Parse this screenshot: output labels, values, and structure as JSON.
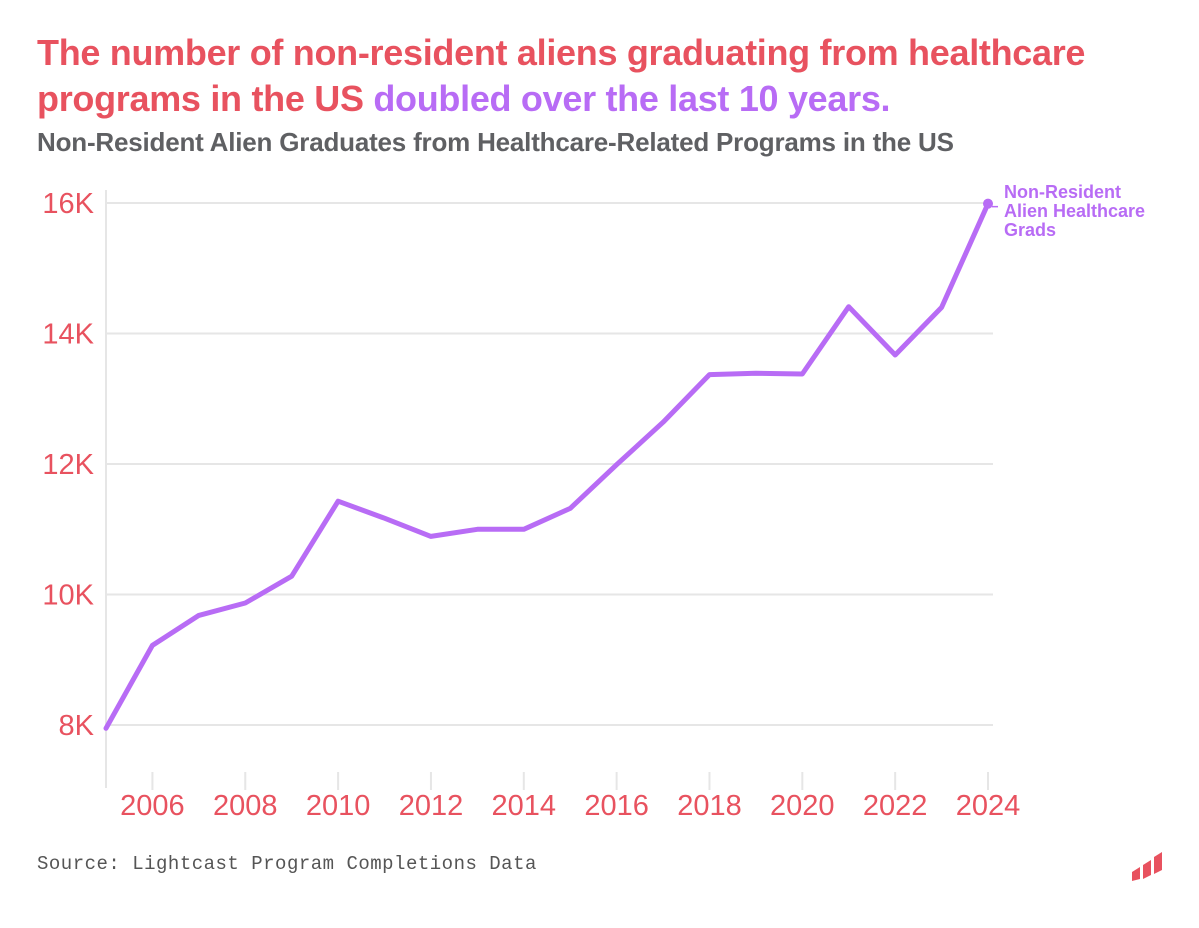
{
  "headline": {
    "part1": "The number of non-resident aliens graduating from healthcare programs in the US ",
    "part2": "doubled over the last 10 years."
  },
  "colors": {
    "accent_red": "#e8525f",
    "accent_purple": "#b86cf5",
    "subtitle_gray": "#5f6063",
    "grid": "#e6e6e6"
  },
  "chart_data": {
    "type": "line",
    "title": "Non-Resident Alien Graduates from Healthcare-Related Programs in the US",
    "xlabel": "",
    "ylabel": "",
    "x": [
      2005,
      2006,
      2007,
      2008,
      2009,
      2010,
      2011,
      2012,
      2013,
      2014,
      2015,
      2016,
      2017,
      2018,
      2019,
      2020,
      2021,
      2022,
      2023,
      2024
    ],
    "series": [
      {
        "name": "Non-Resident Alien Healthcare Grads",
        "values": [
          7950,
          9220,
          9680,
          9870,
          10280,
          11430,
          11170,
          10890,
          11000,
          11000,
          11320,
          11990,
          12640,
          13370,
          13390,
          13380,
          14410,
          13670,
          14400,
          15990
        ]
      }
    ],
    "xlim": [
      2005,
      2024
    ],
    "ylim": [
      7000,
      16400
    ],
    "y_ticks": [
      8000,
      10000,
      12000,
      14000,
      16000
    ],
    "y_tick_labels": [
      "8K",
      "10K",
      "12K",
      "14K",
      "16K"
    ],
    "x_ticks": [
      2006,
      2008,
      2010,
      2012,
      2014,
      2016,
      2018,
      2020,
      2022,
      2024
    ],
    "x_tick_labels": [
      "2006",
      "2008",
      "2010",
      "2012",
      "2014",
      "2016",
      "2018",
      "2020",
      "2022",
      "2024"
    ],
    "series_label_lines": [
      "Non-Resident",
      "Alien Healthcare",
      "Grads"
    ],
    "grid": true,
    "legend": "end-of-line label"
  },
  "source": "Source: Lightcast Program Completions Data",
  "logo_icon": "lightcast-logo-icon"
}
